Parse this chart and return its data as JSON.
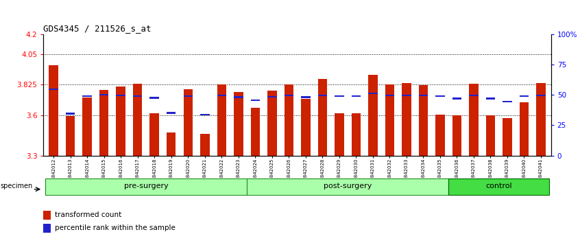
{
  "title": "GDS4345 / 211526_s_at",
  "samples": [
    "GSM842012",
    "GSM842013",
    "GSM842014",
    "GSM842015",
    "GSM842016",
    "GSM842017",
    "GSM842018",
    "GSM842019",
    "GSM842020",
    "GSM842021",
    "GSM842022",
    "GSM842023",
    "GSM842024",
    "GSM842025",
    "GSM842026",
    "GSM842027",
    "GSM842028",
    "GSM842029",
    "GSM842030",
    "GSM842031",
    "GSM842032",
    "GSM842033",
    "GSM842034",
    "GSM842035",
    "GSM842036",
    "GSM842037",
    "GSM842038",
    "GSM842039",
    "GSM842040",
    "GSM842041"
  ],
  "transformed_count": [
    3.97,
    3.595,
    3.73,
    3.785,
    3.81,
    3.83,
    3.615,
    3.47,
    3.79,
    3.46,
    3.825,
    3.77,
    3.655,
    3.78,
    3.825,
    3.72,
    3.865,
    3.615,
    3.615,
    3.9,
    3.825,
    3.835,
    3.82,
    3.605,
    3.6,
    3.83,
    3.6,
    3.575,
    3.695,
    3.835
  ],
  "percentile_rank": [
    0.545,
    0.345,
    0.49,
    0.5,
    0.495,
    0.49,
    0.475,
    0.35,
    0.49,
    0.335,
    0.495,
    0.48,
    0.455,
    0.485,
    0.495,
    0.48,
    0.495,
    0.49,
    0.49,
    0.51,
    0.495,
    0.495,
    0.495,
    0.49,
    0.47,
    0.495,
    0.47,
    0.445,
    0.49,
    0.495
  ],
  "groups": [
    {
      "label": "pre-surgery",
      "start": 0,
      "end": 12
    },
    {
      "label": "post-surgery",
      "start": 12,
      "end": 24
    },
    {
      "label": "control",
      "start": 24,
      "end": 30
    }
  ],
  "group_colors": [
    "#AAFFAA",
    "#AAFFAA",
    "#44DD44"
  ],
  "group_edge_colors": [
    "#228B22",
    "#228B22",
    "#006400"
  ],
  "ymin": 3.3,
  "ymax": 4.2,
  "yticks": [
    3.3,
    3.6,
    3.825,
    4.05,
    4.2
  ],
  "ytick_labels": [
    "3.3",
    "3.6",
    "3.825",
    "4.05",
    "4.2"
  ],
  "right_yticks": [
    0.0,
    0.25,
    0.5,
    0.75,
    1.0
  ],
  "right_ytick_labels": [
    "0",
    "25",
    "50",
    "75",
    "100%"
  ],
  "bar_color": "#CC2200",
  "blue_color": "#2222CC",
  "bar_bottom": 3.3,
  "grid_lines": [
    3.6,
    3.825,
    4.05
  ],
  "bg_color": "#FFFFFF",
  "bar_width": 0.55
}
